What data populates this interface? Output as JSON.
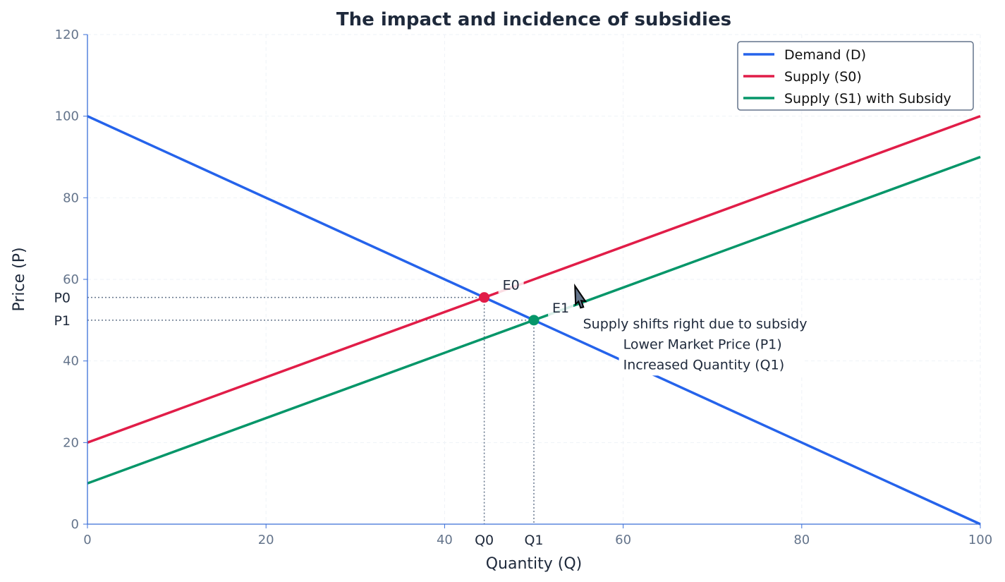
{
  "chart_data": {
    "type": "line",
    "title": "The impact and incidence of subsidies",
    "xlabel": "Quantity (Q)",
    "ylabel": "Price (P)",
    "xlim": [
      0,
      100
    ],
    "ylim": [
      0,
      120
    ],
    "xticks": [
      0,
      20,
      40,
      60,
      80,
      100
    ],
    "yticks": [
      0,
      20,
      40,
      60,
      80,
      100,
      120
    ],
    "grid": true,
    "legend_position": "top-right",
    "series": [
      {
        "name": "Demand (D)",
        "color": "#2563eb",
        "x": [
          0,
          100
        ],
        "y": [
          100,
          0
        ]
      },
      {
        "name": "Supply (S0)",
        "color": "#e11d48",
        "x": [
          0,
          100
        ],
        "y": [
          20,
          100
        ]
      },
      {
        "name": "Supply (S1) with Subsidy",
        "color": "#059669",
        "x": [
          0,
          100
        ],
        "y": [
          10,
          90
        ]
      }
    ],
    "points": [
      {
        "label": "E0",
        "x": 44.44,
        "y": 55.56,
        "color": "#e11d48",
        "qlabel": "Q0",
        "plabel": "P0"
      },
      {
        "label": "E1",
        "x": 50,
        "y": 50,
        "color": "#059669",
        "qlabel": "Q1",
        "plabel": "P1"
      }
    ],
    "annotations": [
      {
        "text": "Supply shifts right due to subsidy",
        "x": 55.5,
        "y": 49,
        "arrow_to": [
          54.6,
          58.4
        ]
      },
      {
        "lines": [
          "Lower Market Price (P1)",
          "Increased Quantity (Q1)"
        ],
        "x": 60,
        "y": 38.5
      }
    ]
  }
}
